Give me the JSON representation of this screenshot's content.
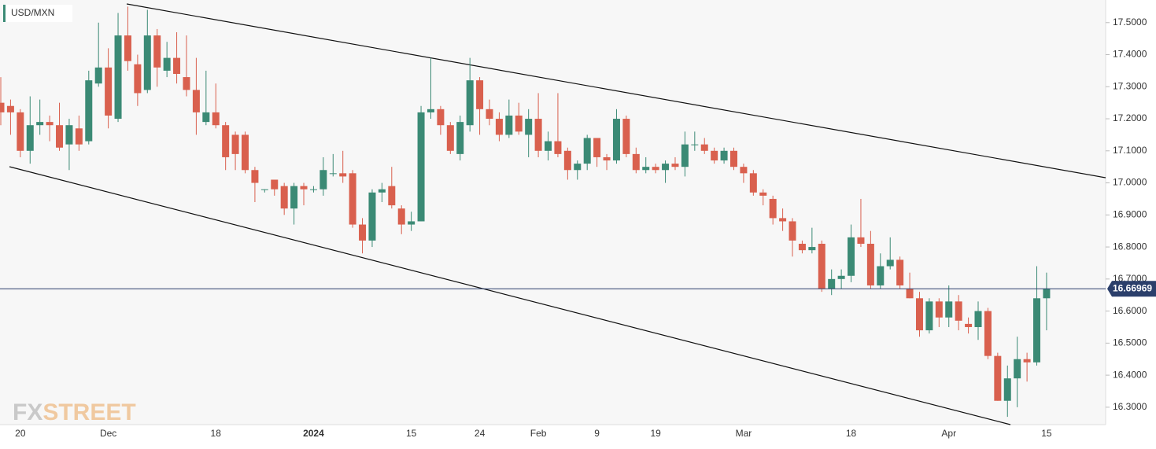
{
  "chart_data": {
    "type": "candlestick",
    "title": "USD/MXN",
    "watermark_left": "FX",
    "watermark_right": "STREET",
    "categories": [
      null,
      null,
      "20",
      null,
      null,
      null,
      null,
      null,
      null,
      null,
      null,
      "Dec",
      null,
      null,
      null,
      null,
      null,
      null,
      null,
      null,
      null,
      null,
      "18",
      null,
      null,
      null,
      null,
      null,
      null,
      null,
      null,
      null,
      "2024",
      null,
      null,
      null,
      null,
      null,
      null,
      null,
      null,
      null,
      "15",
      null,
      null,
      null,
      null,
      null,
      null,
      "24",
      null,
      null,
      null,
      null,
      null,
      "Feb",
      null,
      null,
      null,
      null,
      null,
      "9",
      null,
      null,
      null,
      null,
      null,
      "19",
      null,
      null,
      null,
      null,
      null,
      null,
      null,
      null,
      "Mar",
      null,
      null,
      null,
      null,
      null,
      null,
      null,
      null,
      null,
      null,
      "18",
      null,
      null,
      null,
      null,
      null,
      null,
      null,
      null,
      null,
      "Apr",
      null,
      null,
      null,
      null,
      null,
      null,
      null,
      null,
      null,
      "15"
    ],
    "open": [
      17.25,
      17.24,
      17.22,
      17.1,
      17.18,
      17.19,
      17.18,
      17.12,
      17.17,
      17.13,
      17.31,
      17.36,
      17.2,
      17.46,
      17.37,
      17.29,
      17.46,
      17.35,
      17.39,
      17.33,
      17.29,
      17.19,
      17.22,
      17.18,
      17.15,
      17.15,
      17.04,
      16.98,
      17.01,
      16.99,
      16.92,
      16.99,
      16.98,
      16.98,
      17.03,
      17.03,
      17.03,
      16.87,
      16.82,
      16.97,
      16.99,
      16.92,
      16.87,
      16.88,
      17.22,
      17.23,
      17.18,
      17.09,
      17.18,
      17.32,
      17.23,
      17.2,
      17.15,
      17.21,
      17.15,
      17.2,
      17.1,
      17.13,
      17.1,
      17.04,
      17.06,
      17.14,
      17.08,
      17.07,
      17.2,
      17.09,
      17.04,
      17.05,
      17.04,
      17.06,
      17.05,
      17.12,
      17.12,
      17.1,
      17.07,
      17.1,
      17.05,
      17.03,
      16.97,
      16.95,
      16.89,
      16.88,
      16.81,
      16.79,
      16.81,
      16.67,
      16.7,
      16.71,
      16.83,
      16.81,
      16.68,
      16.74,
      16.76,
      16.67,
      16.64,
      16.54,
      16.63,
      16.58,
      16.63,
      16.56,
      16.55,
      16.6,
      16.46,
      16.32,
      16.39,
      16.45,
      16.44,
      16.64
    ],
    "high": [
      17.33,
      17.26,
      17.23,
      17.27,
      17.26,
      17.21,
      17.25,
      17.2,
      17.21,
      17.35,
      17.5,
      17.42,
      17.53,
      17.55,
      17.4,
      17.54,
      17.48,
      17.44,
      17.47,
      17.46,
      17.39,
      17.35,
      17.31,
      17.19,
      17.16,
      17.16,
      17.05,
      16.98,
      17.01,
      17.0,
      17.0,
      17.0,
      16.99,
      17.08,
      17.09,
      17.1,
      17.04,
      16.89,
      16.98,
      17.0,
      17.05,
      16.93,
      16.91,
      17.24,
      17.39,
      17.24,
      17.19,
      17.21,
      17.39,
      17.33,
      17.26,
      17.22,
      17.26,
      17.25,
      17.23,
      17.28,
      17.16,
      17.28,
      17.11,
      17.07,
      17.15,
      17.14,
      17.09,
      17.23,
      17.21,
      17.11,
      17.08,
      17.06,
      17.07,
      17.08,
      17.16,
      17.16,
      17.14,
      17.11,
      17.11,
      17.11,
      17.06,
      17.04,
      16.98,
      16.96,
      16.92,
      16.89,
      16.82,
      16.86,
      16.82,
      16.73,
      16.73,
      16.87,
      16.95,
      16.85,
      16.78,
      16.83,
      16.77,
      16.72,
      16.66,
      16.64,
      16.64,
      16.68,
      16.65,
      16.58,
      16.63,
      16.61,
      16.47,
      16.43,
      16.52,
      16.47,
      16.74,
      16.72
    ],
    "low": [
      17.18,
      17.15,
      17.08,
      17.06,
      17.15,
      17.13,
      17.1,
      17.04,
      17.1,
      17.12,
      17.3,
      17.17,
      17.19,
      17.35,
      17.24,
      17.28,
      17.3,
      17.33,
      17.31,
      17.27,
      17.15,
      17.18,
      17.17,
      17.04,
      17.04,
      17.03,
      16.94,
      16.97,
      16.96,
      16.9,
      16.87,
      16.93,
      16.97,
      16.96,
      17.02,
      17.0,
      16.86,
      16.78,
      16.8,
      16.94,
      16.92,
      16.84,
      16.85,
      16.88,
      17.2,
      17.15,
      17.09,
      17.07,
      17.16,
      17.15,
      17.18,
      17.13,
      17.14,
      17.15,
      17.08,
      17.08,
      17.07,
      17.08,
      17.01,
      17.01,
      17.04,
      17.05,
      17.04,
      17.06,
      17.08,
      17.03,
      17.03,
      17.03,
      17.0,
      17.04,
      17.02,
      17.1,
      17.09,
      17.06,
      17.06,
      17.04,
      17.0,
      16.96,
      16.93,
      16.87,
      16.85,
      16.77,
      16.78,
      16.78,
      16.66,
      16.65,
      16.67,
      16.69,
      16.8,
      16.67,
      16.67,
      16.73,
      16.67,
      16.64,
      16.52,
      16.53,
      16.55,
      16.55,
      16.54,
      16.53,
      16.51,
      16.45,
      16.32,
      16.27,
      16.3,
      16.38,
      16.43,
      16.54
    ],
    "close": [
      17.22,
      17.22,
      17.1,
      17.18,
      17.19,
      17.18,
      17.11,
      17.18,
      17.12,
      17.32,
      17.36,
      17.21,
      17.46,
      17.38,
      17.28,
      17.46,
      17.36,
      17.39,
      17.34,
      17.29,
      17.22,
      17.22,
      17.18,
      17.08,
      17.09,
      17.04,
      17.0,
      16.98,
      16.98,
      16.92,
      16.99,
      16.98,
      16.98,
      17.04,
      17.03,
      17.02,
      16.87,
      16.82,
      16.97,
      16.98,
      16.93,
      16.87,
      16.88,
      17.22,
      17.23,
      17.18,
      17.1,
      17.19,
      17.32,
      17.23,
      17.2,
      17.15,
      17.21,
      17.16,
      17.2,
      17.1,
      17.13,
      17.09,
      17.04,
      17.06,
      17.14,
      17.08,
      17.07,
      17.2,
      17.09,
      17.04,
      17.05,
      17.04,
      17.06,
      17.05,
      17.12,
      17.12,
      17.1,
      17.07,
      17.1,
      17.05,
      17.03,
      16.97,
      16.96,
      16.89,
      16.88,
      16.82,
      16.79,
      16.8,
      16.67,
      16.7,
      16.71,
      16.83,
      16.81,
      16.68,
      16.74,
      16.76,
      16.68,
      16.64,
      16.54,
      16.63,
      16.58,
      16.63,
      16.57,
      16.55,
      16.6,
      16.46,
      16.32,
      16.39,
      16.45,
      16.44,
      16.64,
      16.67
    ],
    "up_color": "#3b8a75",
    "down_color": "#d9604e",
    "last_price": 16.66969,
    "ylim": [
      16.2457,
      17.5706
    ],
    "yticks": [
      {
        "value": 16.3,
        "label": "16.3000"
      },
      {
        "value": 16.4,
        "label": "16.4000"
      },
      {
        "value": 16.5,
        "label": "16.5000"
      },
      {
        "value": 16.6,
        "label": "16.6000"
      },
      {
        "value": 16.7,
        "label": "16.7000"
      },
      {
        "value": 16.8,
        "label": "16.8000"
      },
      {
        "value": 16.9,
        "label": "16.9000"
      },
      {
        "value": 17.0,
        "label": "17.0000"
      },
      {
        "value": 17.1,
        "label": "17.1000"
      },
      {
        "value": 17.2,
        "label": "17.2000"
      },
      {
        "value": 17.3,
        "label": "17.3000"
      },
      {
        "value": 17.4,
        "label": "17.4000"
      },
      {
        "value": 17.5,
        "label": "17.5000"
      }
    ]
  }
}
